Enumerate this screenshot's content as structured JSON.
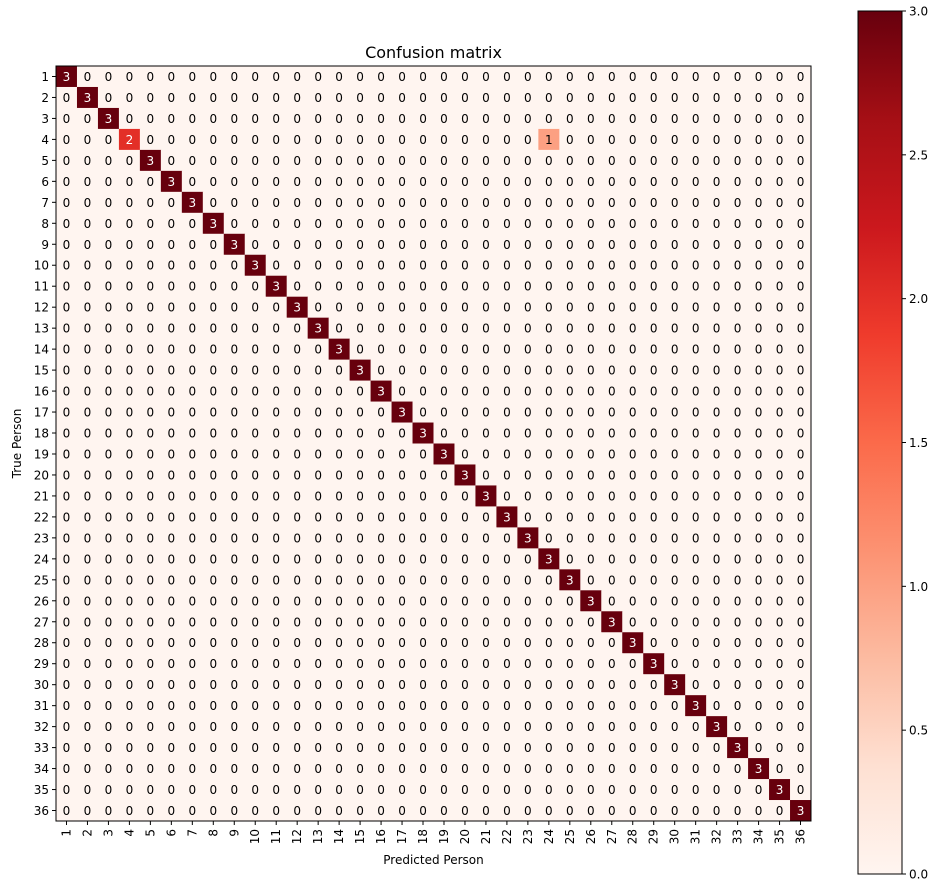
{
  "chart_data": {
    "type": "heatmap",
    "title": "Confusion matrix",
    "xlabel": "Predicted Person",
    "ylabel": "True Person",
    "labels": [
      "1",
      "2",
      "3",
      "4",
      "5",
      "6",
      "7",
      "8",
      "9",
      "10",
      "11",
      "12",
      "13",
      "14",
      "15",
      "16",
      "17",
      "18",
      "19",
      "20",
      "21",
      "22",
      "23",
      "24",
      "25",
      "26",
      "27",
      "28",
      "29",
      "30",
      "31",
      "32",
      "33",
      "34",
      "35",
      "36"
    ],
    "matrix_note": "Diagonal values are 3 except row 4 (value 2 at column 4, value 1 at column 24); all other cells 0.",
    "nonzero_cells": [
      {
        "row": "1",
        "col": "1",
        "value": 3
      },
      {
        "row": "2",
        "col": "2",
        "value": 3
      },
      {
        "row": "3",
        "col": "3",
        "value": 3
      },
      {
        "row": "4",
        "col": "4",
        "value": 2
      },
      {
        "row": "4",
        "col": "24",
        "value": 1
      },
      {
        "row": "5",
        "col": "5",
        "value": 3
      },
      {
        "row": "6",
        "col": "6",
        "value": 3
      },
      {
        "row": "7",
        "col": "7",
        "value": 3
      },
      {
        "row": "8",
        "col": "8",
        "value": 3
      },
      {
        "row": "9",
        "col": "9",
        "value": 3
      },
      {
        "row": "10",
        "col": "10",
        "value": 3
      },
      {
        "row": "11",
        "col": "11",
        "value": 3
      },
      {
        "row": "12",
        "col": "12",
        "value": 3
      },
      {
        "row": "13",
        "col": "13",
        "value": 3
      },
      {
        "row": "14",
        "col": "14",
        "value": 3
      },
      {
        "row": "15",
        "col": "15",
        "value": 3
      },
      {
        "row": "16",
        "col": "16",
        "value": 3
      },
      {
        "row": "17",
        "col": "17",
        "value": 3
      },
      {
        "row": "18",
        "col": "18",
        "value": 3
      },
      {
        "row": "19",
        "col": "19",
        "value": 3
      },
      {
        "row": "20",
        "col": "20",
        "value": 3
      },
      {
        "row": "21",
        "col": "21",
        "value": 3
      },
      {
        "row": "22",
        "col": "22",
        "value": 3
      },
      {
        "row": "23",
        "col": "23",
        "value": 3
      },
      {
        "row": "24",
        "col": "24",
        "value": 3
      },
      {
        "row": "25",
        "col": "25",
        "value": 3
      },
      {
        "row": "26",
        "col": "26",
        "value": 3
      },
      {
        "row": "27",
        "col": "27",
        "value": 3
      },
      {
        "row": "28",
        "col": "28",
        "value": 3
      },
      {
        "row": "29",
        "col": "29",
        "value": 3
      },
      {
        "row": "30",
        "col": "30",
        "value": 3
      },
      {
        "row": "31",
        "col": "31",
        "value": 3
      },
      {
        "row": "32",
        "col": "32",
        "value": 3
      },
      {
        "row": "33",
        "col": "33",
        "value": 3
      },
      {
        "row": "34",
        "col": "34",
        "value": 3
      },
      {
        "row": "35",
        "col": "35",
        "value": 3
      },
      {
        "row": "36",
        "col": "36",
        "value": 3
      }
    ],
    "colorbar": {
      "min": 0.0,
      "max": 3.0,
      "ticks": [
        "0.0",
        "0.5",
        "1.0",
        "1.5",
        "2.0",
        "2.5",
        "3.0"
      ],
      "colormap": "Reds"
    },
    "grid": false
  }
}
